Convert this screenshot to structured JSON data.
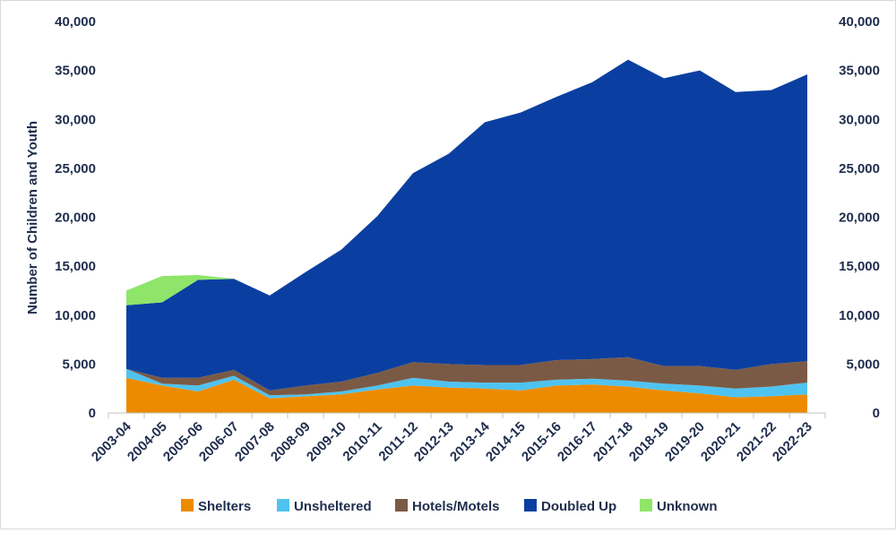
{
  "chart_data": {
    "type": "area",
    "stacked": true,
    "title": "",
    "xlabel": "",
    "ylabel": "Number of Children and Youth",
    "ylim": [
      0,
      40000
    ],
    "yticks": [
      "0",
      "5,000",
      "10,000",
      "15,000",
      "20,000",
      "25,000",
      "30,000",
      "35,000",
      "40,000"
    ],
    "categories": [
      "2003-04",
      "2004-05",
      "2005-06",
      "2006-07",
      "2007-08",
      "2008-09",
      "2009-10",
      "2010-11",
      "2011-12",
      "2012-13",
      "2013-14",
      "2014-15",
      "2015-16",
      "2016-17",
      "2017-18",
      "2018-19",
      "2019-20",
      "2020-21",
      "2021-22",
      "2022-23"
    ],
    "series": [
      {
        "name": "Shelters",
        "color": "#ed8b00",
        "values": [
          3600,
          2800,
          2200,
          3400,
          1500,
          1700,
          1900,
          2400,
          2800,
          2600,
          2500,
          2300,
          2800,
          2900,
          2700,
          2300,
          2000,
          1600,
          1700,
          1900
        ]
      },
      {
        "name": "Unsheltered",
        "color": "#4fc3f0",
        "values": [
          900,
          200,
          600,
          400,
          300,
          200,
          300,
          400,
          800,
          600,
          600,
          800,
          600,
          600,
          600,
          700,
          800,
          900,
          1000,
          1200
        ]
      },
      {
        "name": "Hotels/Motels",
        "color": "#7b5a45",
        "values": [
          0,
          600,
          800,
          600,
          500,
          900,
          1000,
          1300,
          1600,
          1800,
          1800,
          1800,
          2000,
          2000,
          2400,
          1800,
          2000,
          1900,
          2300,
          2200
        ]
      },
      {
        "name": "Doubled Up",
        "color": "#0a3fa1",
        "values": [
          6500,
          7700,
          10000,
          9300,
          9700,
          11600,
          13500,
          16000,
          19300,
          21500,
          24800,
          25800,
          26900,
          28300,
          30400,
          29400,
          30200,
          28400,
          28000,
          29300
        ]
      },
      {
        "name": "Unknown",
        "color": "#8ee56a",
        "values": [
          1500,
          2700,
          500,
          0,
          0,
          0,
          0,
          0,
          0,
          0,
          0,
          0,
          0,
          0,
          0,
          0,
          0,
          0,
          0,
          0
        ]
      }
    ],
    "legend_position": "bottom"
  }
}
